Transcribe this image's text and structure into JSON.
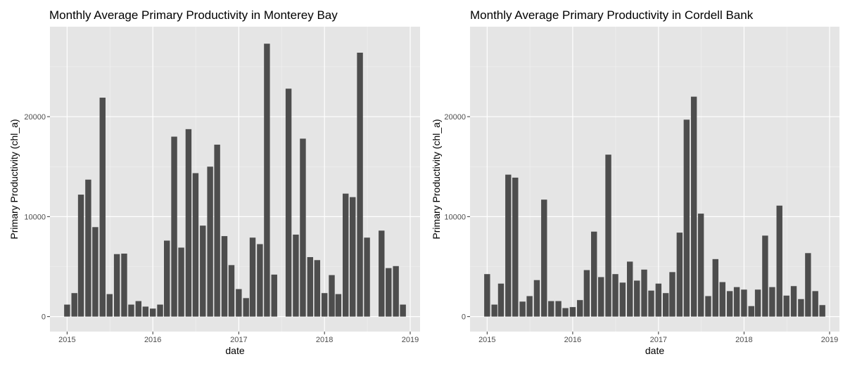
{
  "chart_data": [
    {
      "type": "bar",
      "title": "Monthly Average Primary Productivity in Monterey Bay",
      "xlabel": "date",
      "ylabel": "Primary Productivity (chl_a)",
      "x_ticks": [
        "2015",
        "2016",
        "2017",
        "2018",
        "2019"
      ],
      "y_ticks": [
        "0",
        "10000",
        "20000"
      ],
      "ylim": [
        -1500,
        29000
      ],
      "xlim": [
        "2014-10-20",
        "2019-02-12"
      ],
      "grid": true,
      "panel_background": "#e5e5e5",
      "bar_color": "#4d4d4d",
      "x": [
        "2015-01",
        "2015-02",
        "2015-03",
        "2015-04",
        "2015-05",
        "2015-06",
        "2015-07",
        "2015-08",
        "2015-09",
        "2015-10",
        "2015-11",
        "2015-12",
        "2016-01",
        "2016-02",
        "2016-03",
        "2016-04",
        "2016-05",
        "2016-06",
        "2016-07",
        "2016-08",
        "2016-09",
        "2016-10",
        "2016-11",
        "2016-12",
        "2017-01",
        "2017-02",
        "2017-03",
        "2017-04",
        "2017-05",
        "2017-06",
        "2017-07",
        "2017-08",
        "2017-09",
        "2017-10",
        "2017-11",
        "2017-12",
        "2018-01",
        "2018-02",
        "2018-03",
        "2018-04",
        "2018-05",
        "2018-06",
        "2018-07",
        "2018-08",
        "2018-09",
        "2018-10",
        "2018-11",
        "2018-12"
      ],
      "values": [
        1200,
        2350,
        12200,
        13700,
        8950,
        21900,
        2250,
        6250,
        6300,
        1200,
        1550,
        1000,
        800,
        1200,
        7600,
        18000,
        6900,
        18750,
        14350,
        9100,
        15000,
        17200,
        8050,
        5150,
        2750,
        1850,
        7900,
        7250,
        27300,
        4200,
        null,
        22800,
        8200,
        17800,
        5950,
        5650,
        2350,
        4150,
        2250,
        12300,
        11950,
        26400,
        7900,
        null,
        8600,
        4850,
        5050,
        1200
      ]
    },
    {
      "type": "bar",
      "title": "Monthly Average Primary Productivity in Cordell Bank",
      "xlabel": "date",
      "ylabel": "Primary Productivity (chl_a)",
      "x_ticks": [
        "2015",
        "2016",
        "2017",
        "2018",
        "2019"
      ],
      "y_ticks": [
        "0",
        "10000",
        "20000"
      ],
      "ylim": [
        -1500,
        29000
      ],
      "xlim": [
        "2014-10-20",
        "2019-02-12"
      ],
      "grid": true,
      "panel_background": "#e5e5e5",
      "bar_color": "#4d4d4d",
      "x": [
        "2015-01",
        "2015-02",
        "2015-03",
        "2015-04",
        "2015-05",
        "2015-06",
        "2015-07",
        "2015-08",
        "2015-09",
        "2015-10",
        "2015-11",
        "2015-12",
        "2016-01",
        "2016-02",
        "2016-03",
        "2016-04",
        "2016-05",
        "2016-06",
        "2016-07",
        "2016-08",
        "2016-09",
        "2016-10",
        "2016-11",
        "2016-12",
        "2017-01",
        "2017-02",
        "2017-03",
        "2017-04",
        "2017-05",
        "2017-06",
        "2017-07",
        "2017-08",
        "2017-09",
        "2017-10",
        "2017-11",
        "2017-12",
        "2018-01",
        "2018-02",
        "2018-03",
        "2018-04",
        "2018-05",
        "2018-06",
        "2018-07",
        "2018-08",
        "2018-09",
        "2018-10",
        "2018-11",
        "2018-12"
      ],
      "values": [
        4250,
        1200,
        3300,
        14200,
        13900,
        1500,
        2050,
        3650,
        11700,
        1550,
        1550,
        850,
        950,
        1650,
        4650,
        8500,
        3950,
        16200,
        4250,
        3400,
        5500,
        3600,
        4700,
        2600,
        3300,
        2350,
        4450,
        8400,
        19700,
        22000,
        10300,
        2050,
        5750,
        3450,
        2550,
        2950,
        2700,
        1050,
        2700,
        8100,
        2950,
        11100,
        2100,
        3050,
        1750,
        6350,
        2550,
        1150
      ]
    }
  ]
}
